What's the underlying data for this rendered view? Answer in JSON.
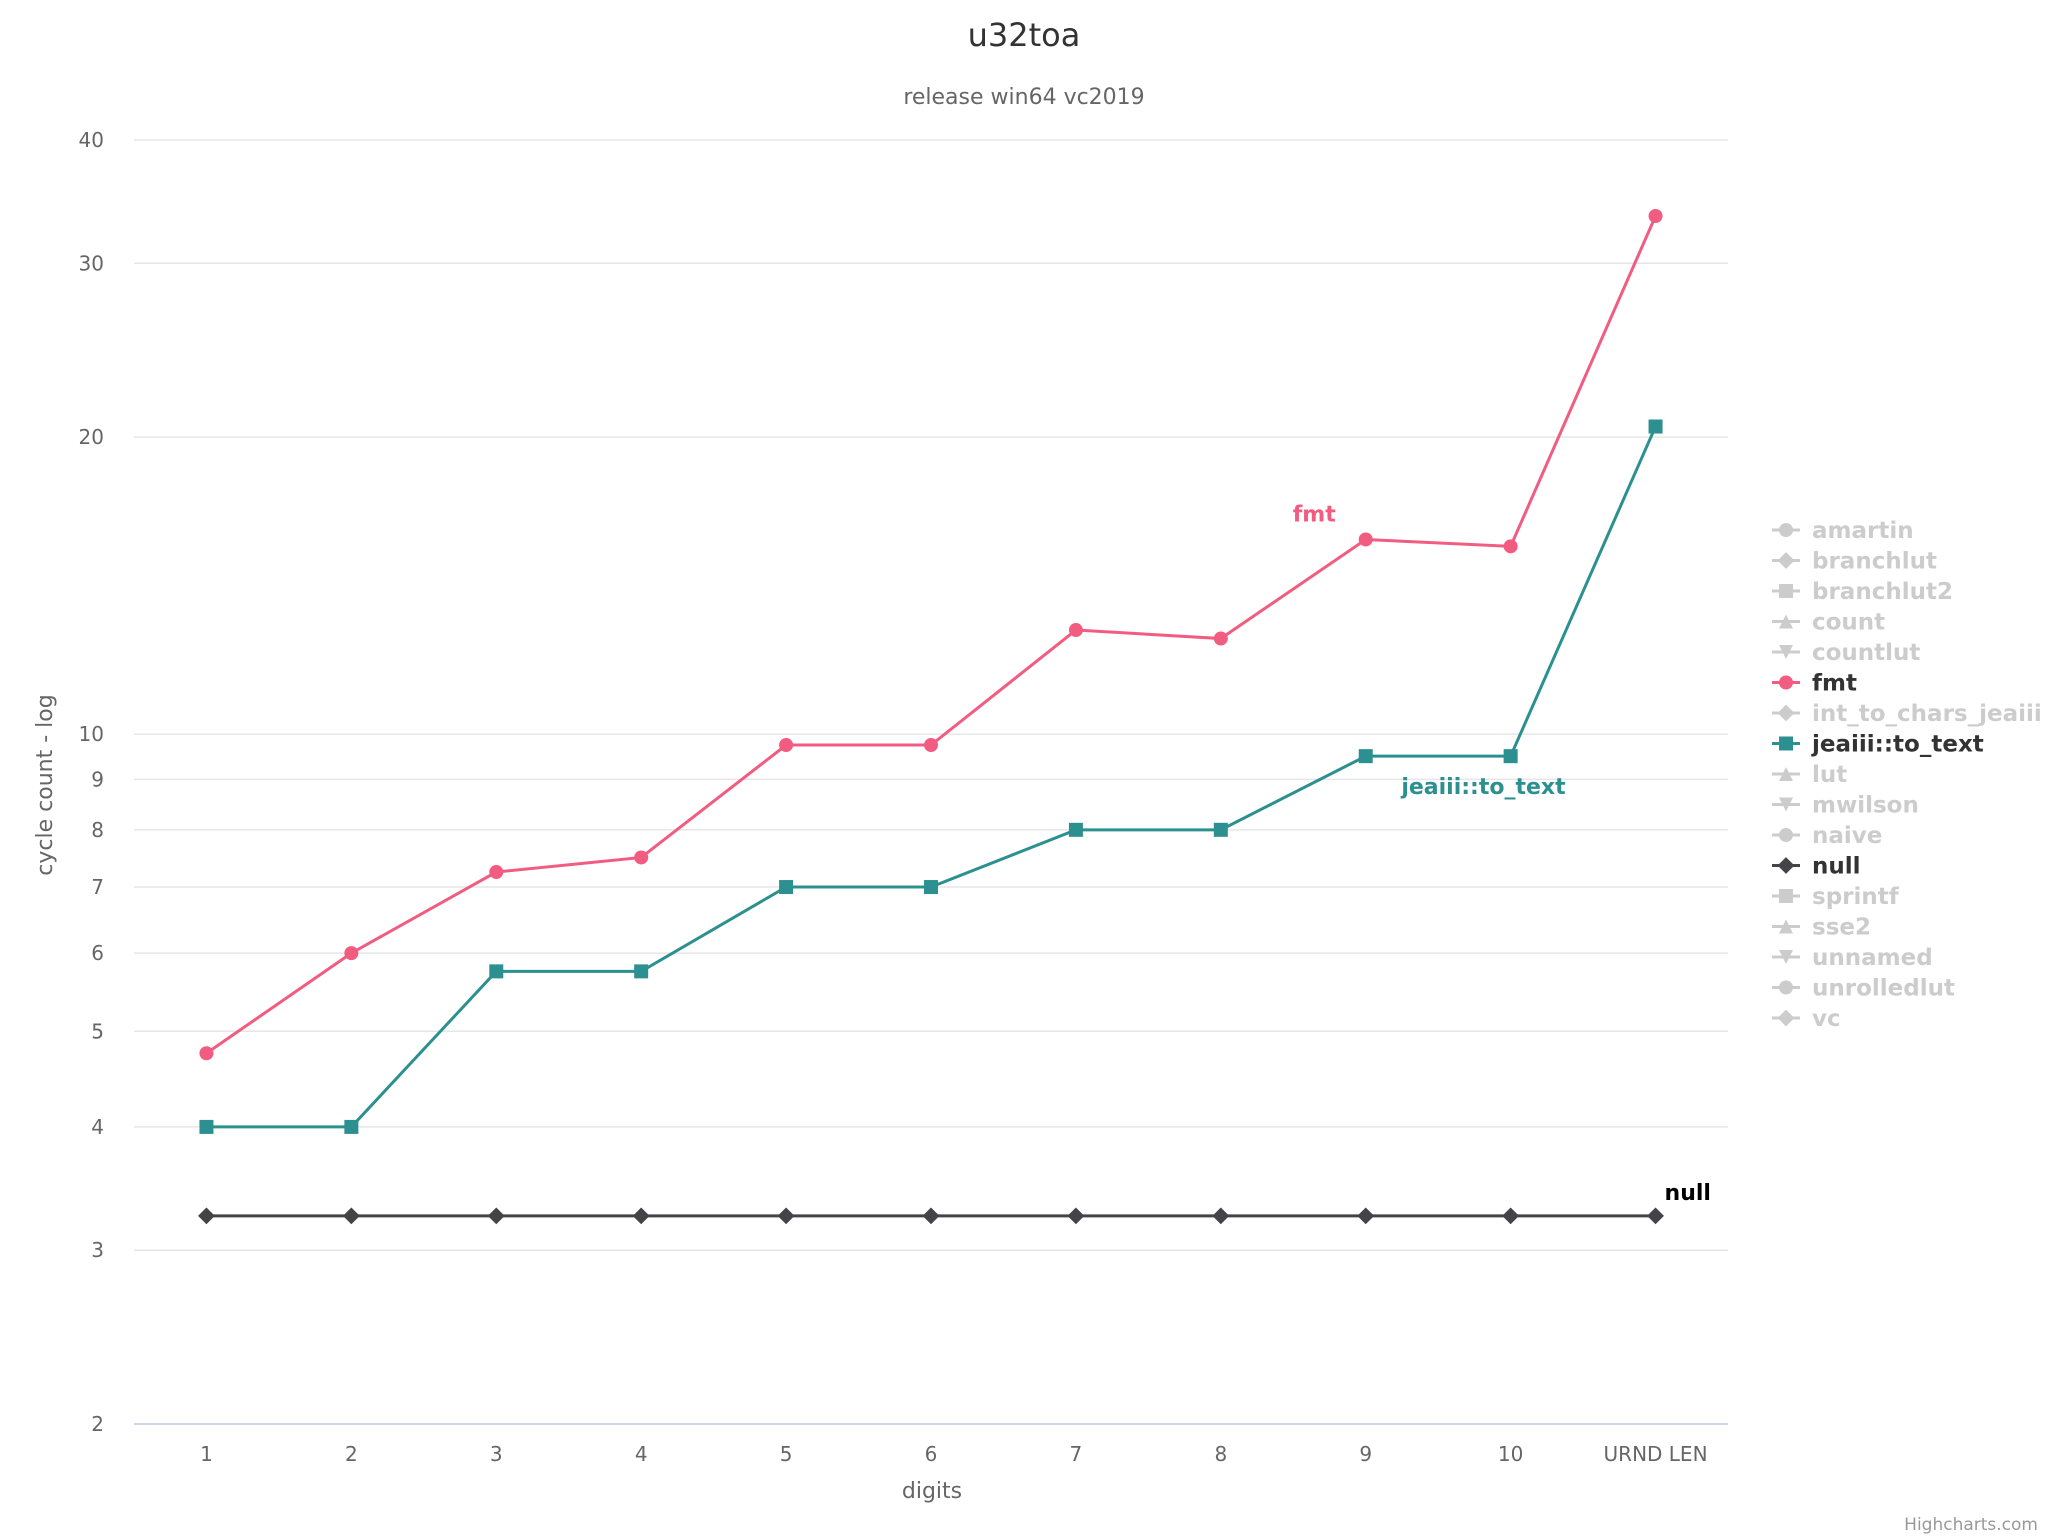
{
  "chart_data": {
    "type": "line",
    "title": "u32toa",
    "subtitle": "release win64 vc2019",
    "xlabel": "digits",
    "ylabel": "cycle count - log",
    "y_scale": "log",
    "ylim": [
      2,
      40
    ],
    "y_ticks": [
      2,
      3,
      4,
      5,
      6,
      7,
      8,
      9,
      10,
      20,
      30,
      40
    ],
    "grid": true,
    "legend_position": "right",
    "categories": [
      "1",
      "2",
      "3",
      "4",
      "5",
      "6",
      "7",
      "8",
      "9",
      "10",
      "URND LEN"
    ],
    "series": [
      {
        "name": "fmt",
        "color": "#f15c80",
        "marker": "circle",
        "label": "fmt",
        "values": [
          4.75,
          6.0,
          7.25,
          7.5,
          9.75,
          9.75,
          12.75,
          12.5,
          15.75,
          15.5,
          33.5
        ]
      },
      {
        "name": "jeaiii::to_text",
        "color": "#2b908f",
        "marker": "square",
        "label": "jeaiii::to_text",
        "values": [
          4.0,
          4.0,
          5.75,
          5.75,
          7.0,
          7.0,
          8.0,
          8.0,
          9.5,
          9.5,
          20.5
        ]
      },
      {
        "name": "null",
        "color": "#434348",
        "marker": "diamond",
        "label": "null",
        "values": [
          3.25,
          3.25,
          3.25,
          3.25,
          3.25,
          3.25,
          3.25,
          3.25,
          3.25,
          3.25,
          3.25
        ]
      }
    ],
    "legend": [
      {
        "name": "amartin",
        "marker": "circle",
        "active": false
      },
      {
        "name": "branchlut",
        "marker": "diamond",
        "active": false
      },
      {
        "name": "branchlut2",
        "marker": "square",
        "active": false
      },
      {
        "name": "count",
        "marker": "triangle",
        "active": false
      },
      {
        "name": "countlut",
        "marker": "triangle-down",
        "active": false
      },
      {
        "name": "fmt",
        "marker": "circle",
        "active": true,
        "color": "#f15c80"
      },
      {
        "name": "int_to_chars_jeaiii",
        "marker": "diamond",
        "active": false
      },
      {
        "name": "jeaiii::to_text",
        "marker": "square",
        "active": true,
        "color": "#2b908f"
      },
      {
        "name": "lut",
        "marker": "triangle",
        "active": false
      },
      {
        "name": "mwilson",
        "marker": "triangle-down",
        "active": false
      },
      {
        "name": "naive",
        "marker": "circle",
        "active": false
      },
      {
        "name": "null",
        "marker": "diamond",
        "active": true,
        "color": "#434348"
      },
      {
        "name": "sprintf",
        "marker": "square",
        "active": false
      },
      {
        "name": "sse2",
        "marker": "triangle",
        "active": false
      },
      {
        "name": "unnamed",
        "marker": "triangle-down",
        "active": false
      },
      {
        "name": "unrolledlut",
        "marker": "circle",
        "active": false
      },
      {
        "name": "vc",
        "marker": "diamond",
        "active": false
      }
    ],
    "credits": "Highcharts.com"
  }
}
